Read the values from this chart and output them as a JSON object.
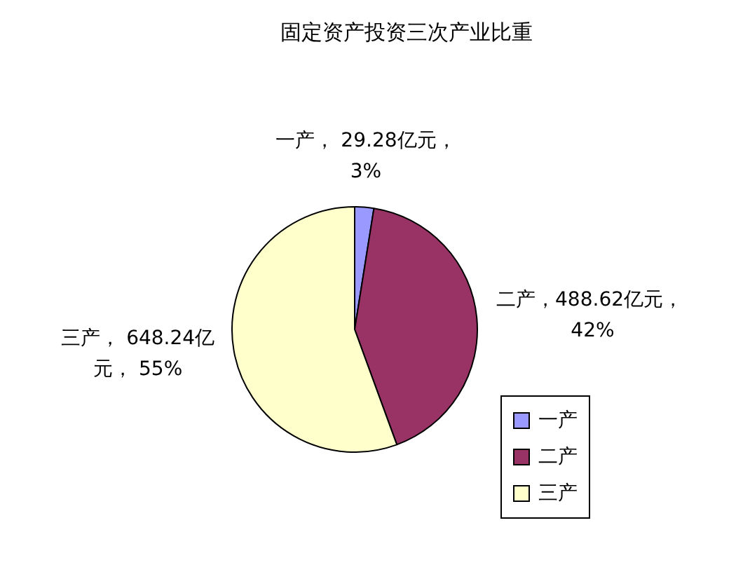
{
  "chart_data": {
    "type": "pie",
    "title": "固定资产投资三次产业比重",
    "categories": [
      "一产",
      "二产",
      "三产"
    ],
    "values": [
      29.28,
      488.62,
      648.24
    ],
    "colors": [
      "#9999ff",
      "#993366",
      "#ffffcc"
    ],
    "value_labels": [
      "一产， 29.28亿元，3%",
      "二产，488.62亿元， 42%",
      "三产， 648.24亿元， 55%"
    ],
    "legend": "bottom right"
  }
}
